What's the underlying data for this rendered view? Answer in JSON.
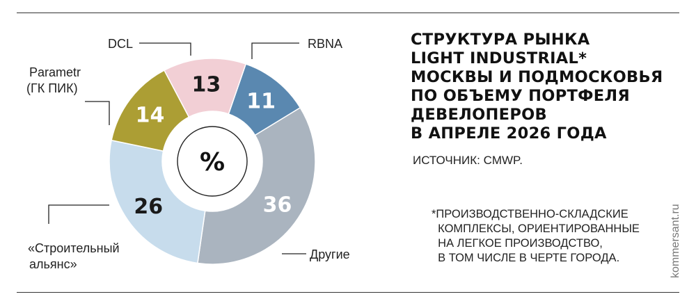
{
  "title": "СТРУКТУРА РЫНКА\nLIGHT INDUSTRIAL*\nМОСКВЫ И ПОДМОСКОВЬЯ\nПО ОБЪЕМУ ПОРТФЕЛЯ\nДЕВЕЛОПЕРОВ\nВ АПРЕЛЕ 2026 ГОДА",
  "source": "ИСТОЧНИК: CMWP.",
  "footnote": "*ПРОИЗВОДСТВЕННО-СКЛАДСКИЕ\n  КОМПЛЕКСЫ, ОРИЕНТИРОВАННЫЕ\n  НА ЛЕГКОЕ ПРОИЗВОДСТВО,\n  В ТОМ ЧИСЛЕ В ЧЕРТЕ ГОРОДА.",
  "brand": "kommersant.ru",
  "center_label": "%",
  "chart_data": {
    "type": "pie",
    "variant": "donut",
    "unit": "%",
    "slices": [
      {
        "label": "RBNA",
        "value": 11,
        "color": "#5a88b0",
        "text_color": "#ffffff"
      },
      {
        "label": "Другие",
        "value": 36,
        "color": "#aab4bf",
        "text_color": "#ffffff"
      },
      {
        "label": "«Строительный альянс»",
        "value": 26,
        "color": "#c7dcec",
        "text_color": "#1a1a1a"
      },
      {
        "label": "Parametr (ГК ПИК)",
        "value": 14,
        "color": "#ac9e34",
        "text_color": "#ffffff"
      },
      {
        "label": "DCL",
        "value": 13,
        "color": "#f2cfd5",
        "text_color": "#1a1a1a"
      }
    ]
  }
}
